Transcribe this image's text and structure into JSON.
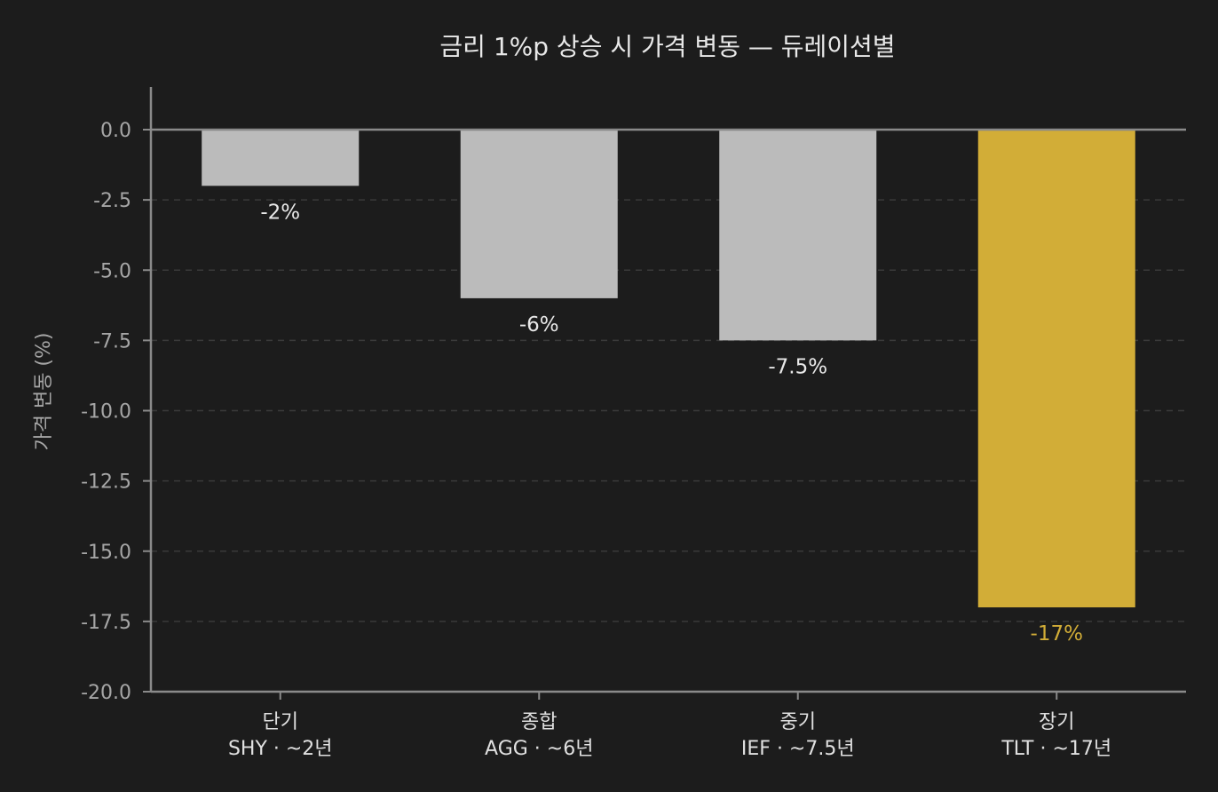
{
  "chart_data": {
    "type": "bar",
    "title": "금리 1%p 상승 시 가격 변동 — 듀레이션별",
    "xlabel": "",
    "ylabel": "가격 변동 (%)",
    "ylim": [
      -20.0,
      1.5
    ],
    "yticks": [
      0.0,
      -2.5,
      -5.0,
      -7.5,
      -10.0,
      -12.5,
      -15.0,
      -17.5,
      -20.0
    ],
    "ytick_labels": [
      "0.0",
      "-2.5",
      "-5.0",
      "-7.5",
      "-10.0",
      "-12.5",
      "-15.0",
      "-17.5",
      "-20.0"
    ],
    "categories": [
      {
        "name": "단기",
        "sub": "SHY · ~2년"
      },
      {
        "name": "종합",
        "sub": "AGG · ~6년"
      },
      {
        "name": "중기",
        "sub": "IEF · ~7.5년"
      },
      {
        "name": "장기",
        "sub": "TLT · ~17년"
      }
    ],
    "values": [
      -2,
      -6,
      -7.5,
      -17
    ],
    "value_labels": [
      "-2%",
      "-6%",
      "-7.5%",
      "-17%"
    ],
    "grid": "horizontal dashed",
    "colors": {
      "background": "#1c1c1c",
      "bar": "#bbbbbb",
      "highlight_bar": "#d2ad37",
      "axis": "#8a8a8a",
      "grid": "#3a3a3a",
      "label": "#e8e8e8"
    },
    "highlight_index": 3
  }
}
